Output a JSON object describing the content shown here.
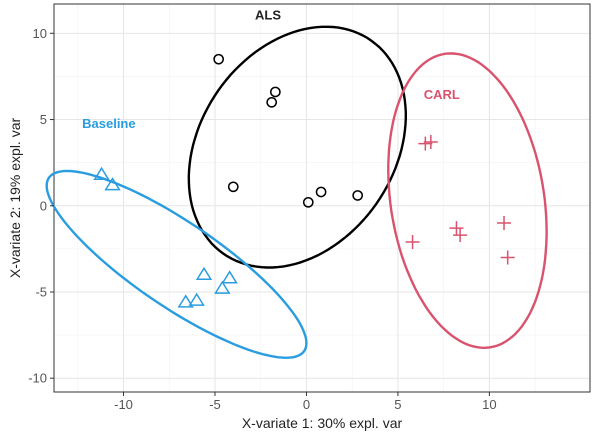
{
  "chart_data": {
    "type": "scatter",
    "xlabel": "X-variate 1: 30% expl. var",
    "ylabel": "X-variate 2: 19% expl. var",
    "xlim": [
      -13.8,
      15.5
    ],
    "ylim": [
      -10.8,
      11.7
    ],
    "xticks": [
      -10,
      -5,
      0,
      5,
      10
    ],
    "yticks": [
      -10,
      -5,
      0,
      5,
      10
    ],
    "xtick_labels": [
      "-10",
      "-5",
      "0",
      "5",
      "10"
    ],
    "ytick_labels": [
      "-10",
      "-5",
      "0",
      "5",
      "10"
    ],
    "grid": true,
    "series": [
      {
        "name": "ALS",
        "color": "#000000",
        "marker": "circle",
        "x": [
          -4.8,
          -1.7,
          -1.9,
          -4.0,
          0.1,
          0.8,
          2.8
        ],
        "y": [
          8.5,
          6.6,
          6.0,
          1.1,
          0.2,
          0.8,
          0.6
        ],
        "ellipse": {
          "cx": -0.5,
          "cy": 3.4,
          "rx": 7.4,
          "ry": 5.4,
          "angle": 61
        }
      },
      {
        "name": "CARL",
        "color": "#d9536e",
        "marker": "plus",
        "x": [
          6.5,
          6.8,
          5.8,
          8.2,
          8.4,
          10.8,
          11.0
        ],
        "y": [
          3.6,
          3.7,
          -2.1,
          -1.3,
          -1.7,
          -1.0,
          -3.0
        ],
        "ellipse": {
          "cx": 8.8,
          "cy": 0.3,
          "rx": 8.6,
          "ry": 4.2,
          "angle": -82
        }
      },
      {
        "name": "Baseline",
        "color": "#2a9de0",
        "marker": "triangle",
        "x": [
          -11.2,
          -10.6,
          -6.6,
          -6.0,
          -5.6,
          -4.6,
          -4.2
        ],
        "y": [
          1.8,
          1.2,
          -5.6,
          -5.5,
          -4.0,
          -4.8,
          -4.2
        ],
        "ellipse": {
          "cx": -7.1,
          "cy": -3.4,
          "rx": 8.6,
          "ry": 2.4,
          "angle": -36
        }
      }
    ],
    "group_labels": [
      {
        "text": "ALS",
        "x": -2.1,
        "y": 10.8,
        "color": "#222222"
      },
      {
        "text": "CARL",
        "x": 7.4,
        "y": 6.2,
        "color": "#d9536e"
      },
      {
        "text": "Baseline",
        "x": -10.8,
        "y": 4.5,
        "color": "#2a9de0"
      }
    ]
  }
}
